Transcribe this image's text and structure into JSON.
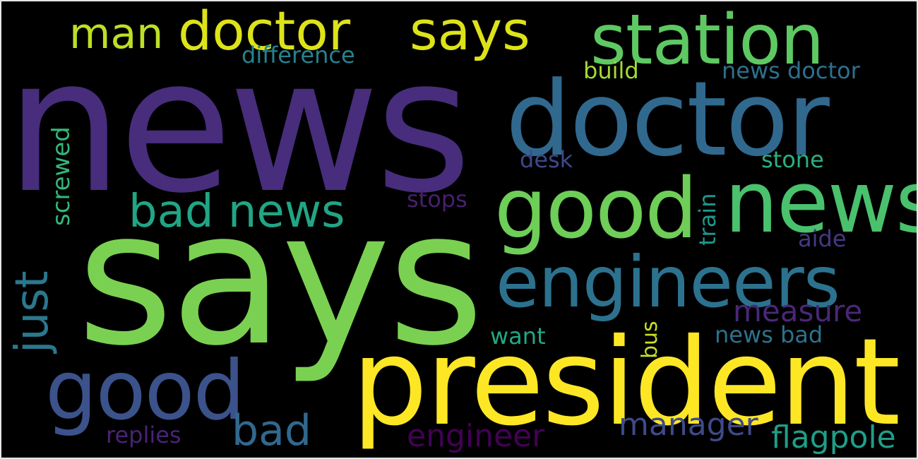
{
  "words": [
    {
      "id": "news",
      "text": "news",
      "color": "#472d7b"
    },
    {
      "id": "says",
      "text": "says",
      "color": "#7ad151"
    },
    {
      "id": "president",
      "text": "president",
      "color": "#fde725"
    },
    {
      "id": "doctor-large",
      "text": "doctor",
      "color": "#31688e"
    },
    {
      "id": "station",
      "text": "station",
      "color": "#5ec962"
    },
    {
      "id": "good-news-good",
      "text": "good",
      "color": "#6ece58"
    },
    {
      "id": "good-news-news",
      "text": "news",
      "color": "#4ac16d"
    },
    {
      "id": "engineers",
      "text": "engineers",
      "color": "#2c728e"
    },
    {
      "id": "good-lower",
      "text": "good",
      "color": "#3b528b"
    },
    {
      "id": "doctor-top",
      "text": "doctor",
      "color": "#dde318"
    },
    {
      "id": "says-top",
      "text": "says",
      "color": "#dde318"
    },
    {
      "id": "man",
      "text": "man",
      "color": "#bddf26"
    },
    {
      "id": "bad-news",
      "text": "bad news",
      "color": "#21a585"
    },
    {
      "id": "just",
      "text": "just",
      "color": "#2a788e"
    },
    {
      "id": "bad",
      "text": "bad",
      "color": "#31688e"
    },
    {
      "id": "engineer",
      "text": "engineer",
      "color": "#440154"
    },
    {
      "id": "manager",
      "text": "manager",
      "color": "#3e4a89"
    },
    {
      "id": "flagpole",
      "text": "flagpole",
      "color": "#1f9e89"
    },
    {
      "id": "measure",
      "text": "measure",
      "color": "#482878"
    },
    {
      "id": "difference",
      "text": "difference",
      "color": "#26828e"
    },
    {
      "id": "build",
      "text": "build",
      "color": "#a5db36"
    },
    {
      "id": "news-doctor",
      "text": "news doctor",
      "color": "#2d708e"
    },
    {
      "id": "screwed",
      "text": "screwed",
      "color": "#35b779"
    },
    {
      "id": "desk",
      "text": "desk",
      "color": "#3e4989"
    },
    {
      "id": "stone",
      "text": "stone",
      "color": "#2ab07f"
    },
    {
      "id": "stops",
      "text": "stops",
      "color": "#481f70"
    },
    {
      "id": "train",
      "text": "train",
      "color": "#1f988b"
    },
    {
      "id": "aide",
      "text": "aide",
      "color": "#443983"
    },
    {
      "id": "want",
      "text": "want",
      "color": "#22a884"
    },
    {
      "id": "bus",
      "text": "bus",
      "color": "#c8e020"
    },
    {
      "id": "news-bad",
      "text": "news bad",
      "color": "#2c728e"
    },
    {
      "id": "replies",
      "text": "replies",
      "color": "#482475"
    }
  ]
}
